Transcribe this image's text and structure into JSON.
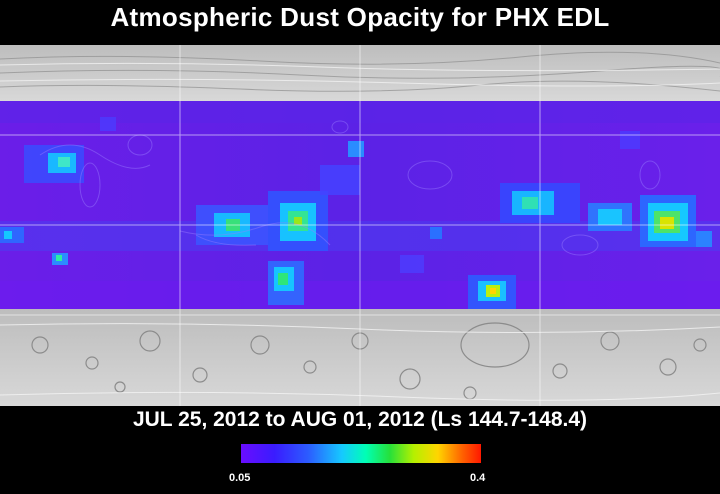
{
  "title": "Atmospheric Dust Opacity for PHX EDL",
  "date_range": "JUL 25, 2012 to AUG 01, 2012 (Ls 144.7-148.4)",
  "colorbar": {
    "min_label": "0.05",
    "max_label": "0.4"
  },
  "colors": {
    "background": "#000000",
    "low_opacity": "#6a0dff",
    "mid_opacity": "#16c9ff",
    "high_opacity": "#ff1800"
  }
}
